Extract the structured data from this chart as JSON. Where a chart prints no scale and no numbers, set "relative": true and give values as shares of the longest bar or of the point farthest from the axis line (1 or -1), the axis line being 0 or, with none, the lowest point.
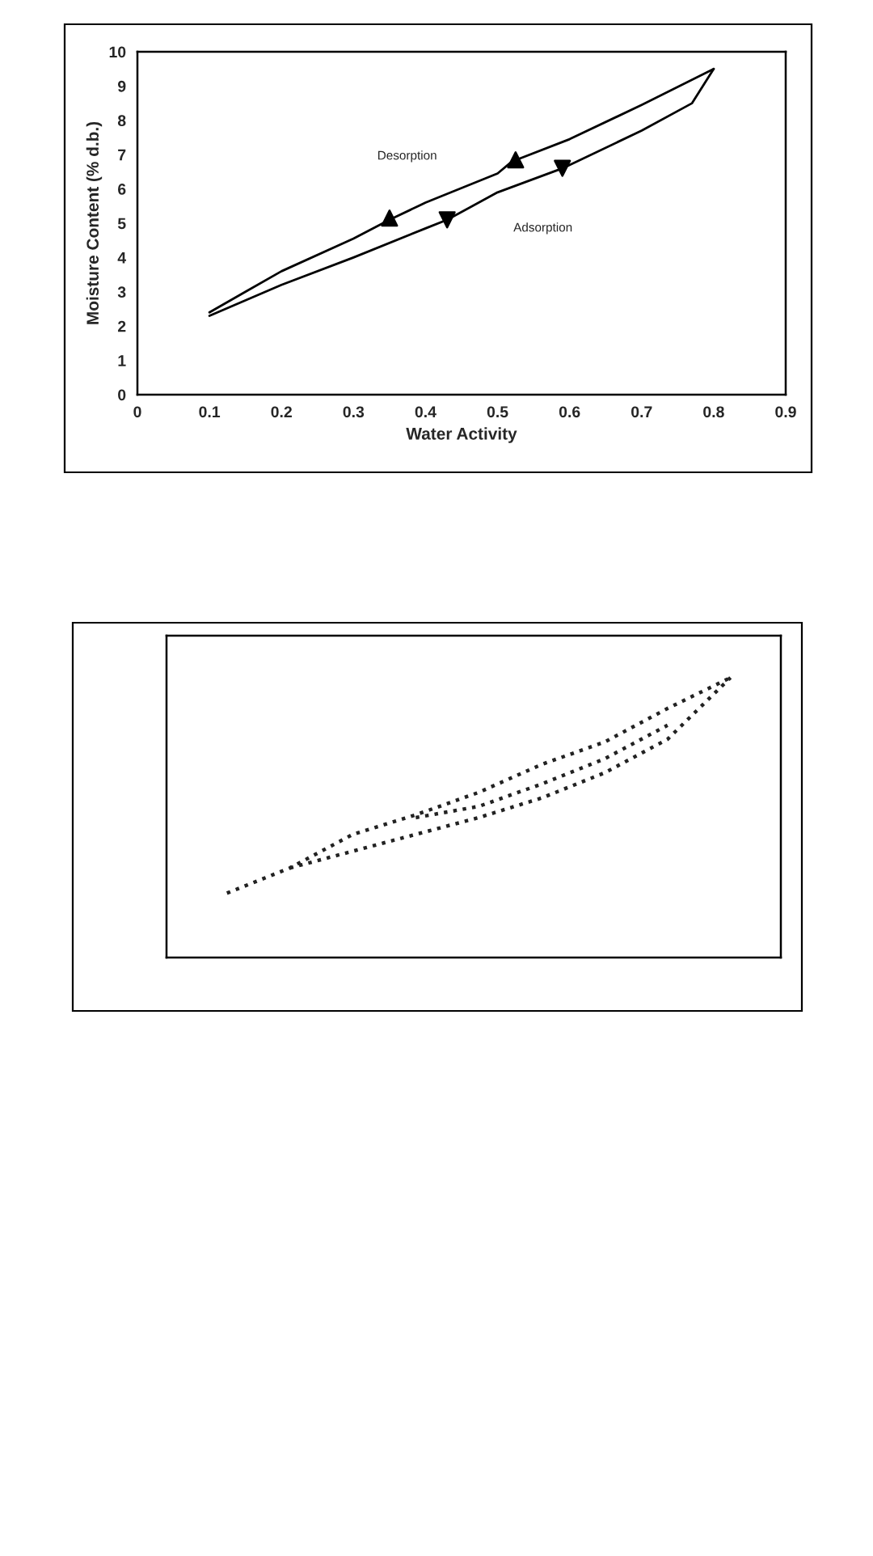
{
  "chart_data": [
    {
      "type": "line",
      "xlabel": "Water Activity",
      "ylabel": "Moisture Content (% d.b.)",
      "xlim": [
        0,
        0.9
      ],
      "ylim": [
        0,
        10
      ],
      "xticks": [
        {
          "value": 0,
          "label": "0"
        },
        0.1,
        0.2,
        0.3,
        0.4,
        0.5,
        0.6,
        0.7,
        0.8,
        0.9
      ],
      "yticks": [
        0,
        1,
        2,
        3,
        4,
        5,
        6,
        7,
        8,
        9,
        10
      ],
      "grid": false,
      "legend": false,
      "series": [
        {
          "color": "#000000",
          "x": [
            0.1,
            0.15,
            0.2,
            0.3,
            0.35,
            0.4,
            0.5,
            0.52,
            0.6,
            0.7,
            0.8
          ],
          "values": [
            2.4,
            3.0,
            3.6,
            4.55,
            5.1,
            5.6,
            6.45,
            6.8,
            7.45,
            8.45,
            9.5
          ]
        },
        {
          "color": "#000000",
          "x": [
            0.1,
            0.2,
            0.3,
            0.4,
            0.43,
            0.5,
            0.59,
            0.7,
            0.77,
            0.8
          ],
          "values": [
            2.3,
            3.2,
            4.0,
            4.85,
            5.1,
            5.9,
            6.6,
            7.7,
            8.5,
            9.5
          ]
        },
        {
          "type": "scatter",
          "marker": "triangle",
          "color": "#000000",
          "x": [
            0.35,
            0.525
          ],
          "values": [
            5.15,
            6.85
          ]
        },
        {
          "type": "scatter",
          "marker": "triangle_down",
          "color": "#000000",
          "x": [
            0.43,
            0.59
          ],
          "values": [
            5.1,
            6.6
          ]
        }
      ],
      "annotations": [
        "Desorption",
        "Adsorption"
      ]
    },
    {
      "type": "line",
      "relative": true,
      "grid": false,
      "legend": false,
      "line_style": "dotted",
      "categories": [
        null,
        null,
        null,
        null,
        null,
        null,
        null,
        null,
        null
      ],
      "series": [
        {
          "color": "#222222",
          "values": [
            0.23,
            0.32,
            0.44,
            0.51,
            0.59,
            0.69,
            0.77,
            0.89,
            1.0
          ]
        },
        {
          "color": "#222222",
          "values": [
            null,
            0.32,
            0.38,
            0.44,
            0.5,
            0.57,
            0.66,
            0.78,
            1.0
          ]
        },
        {
          "color": "#222222",
          "values": [
            null,
            null,
            null,
            0.5,
            0.54,
            0.62,
            0.71,
            0.83,
            null
          ]
        }
      ]
    }
  ]
}
